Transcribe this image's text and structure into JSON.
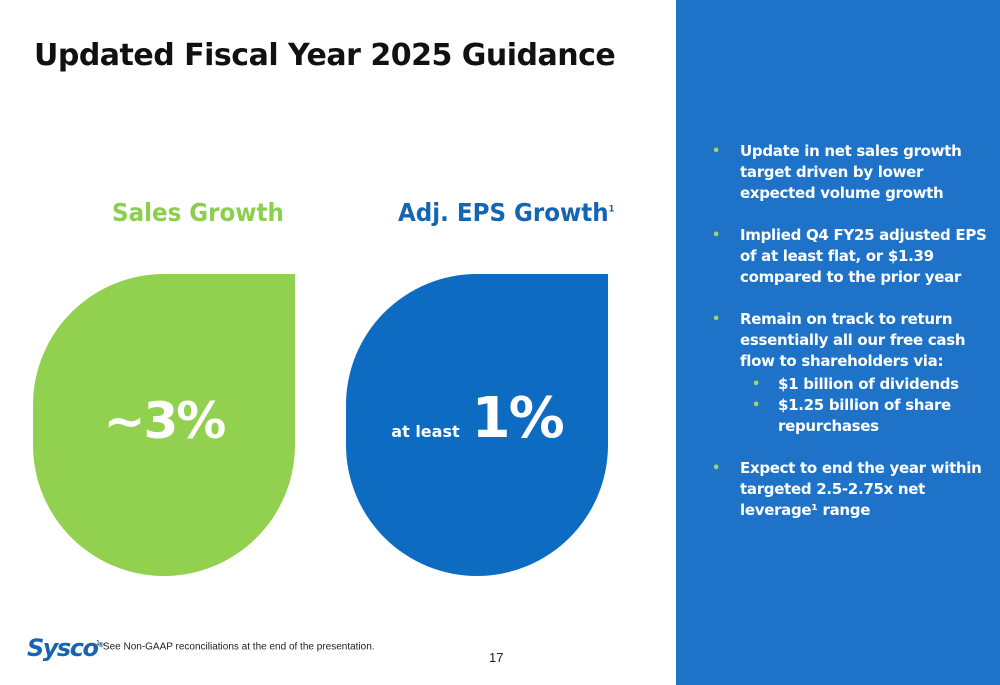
{
  "slide": {
    "title": "Updated Fiscal Year 2025 Guidance",
    "page_number": "17"
  },
  "metrics": {
    "sales": {
      "label": "Sales Growth",
      "value": "~3%",
      "color": "#92d050"
    },
    "eps": {
      "label": "Adj. EPS Growth",
      "label_sup": "1",
      "prefix": "at least",
      "value": "1%",
      "color": "#0d6bc1"
    }
  },
  "panel": {
    "color": "#1e73c8",
    "bullets": [
      "Update in net sales growth target driven by lower expected volume growth",
      "Implied Q4 FY25 adjusted EPS of at least flat, or $1.39 compared to the prior year",
      "Remain on track to return essentially all our free cash flow to shareholders via:",
      "Expect to end the year within targeted 2.5-2.75x net leverage¹ range"
    ],
    "sub_bullets": [
      "$1 billion of dividends",
      "$1.25 billion of share repurchases"
    ]
  },
  "footer": {
    "logo": "Sysco",
    "logo_mark": "®",
    "footnote_marker": "1",
    "footnote_text": "See Non-GAAP reconciliations at the end of the presentation."
  }
}
